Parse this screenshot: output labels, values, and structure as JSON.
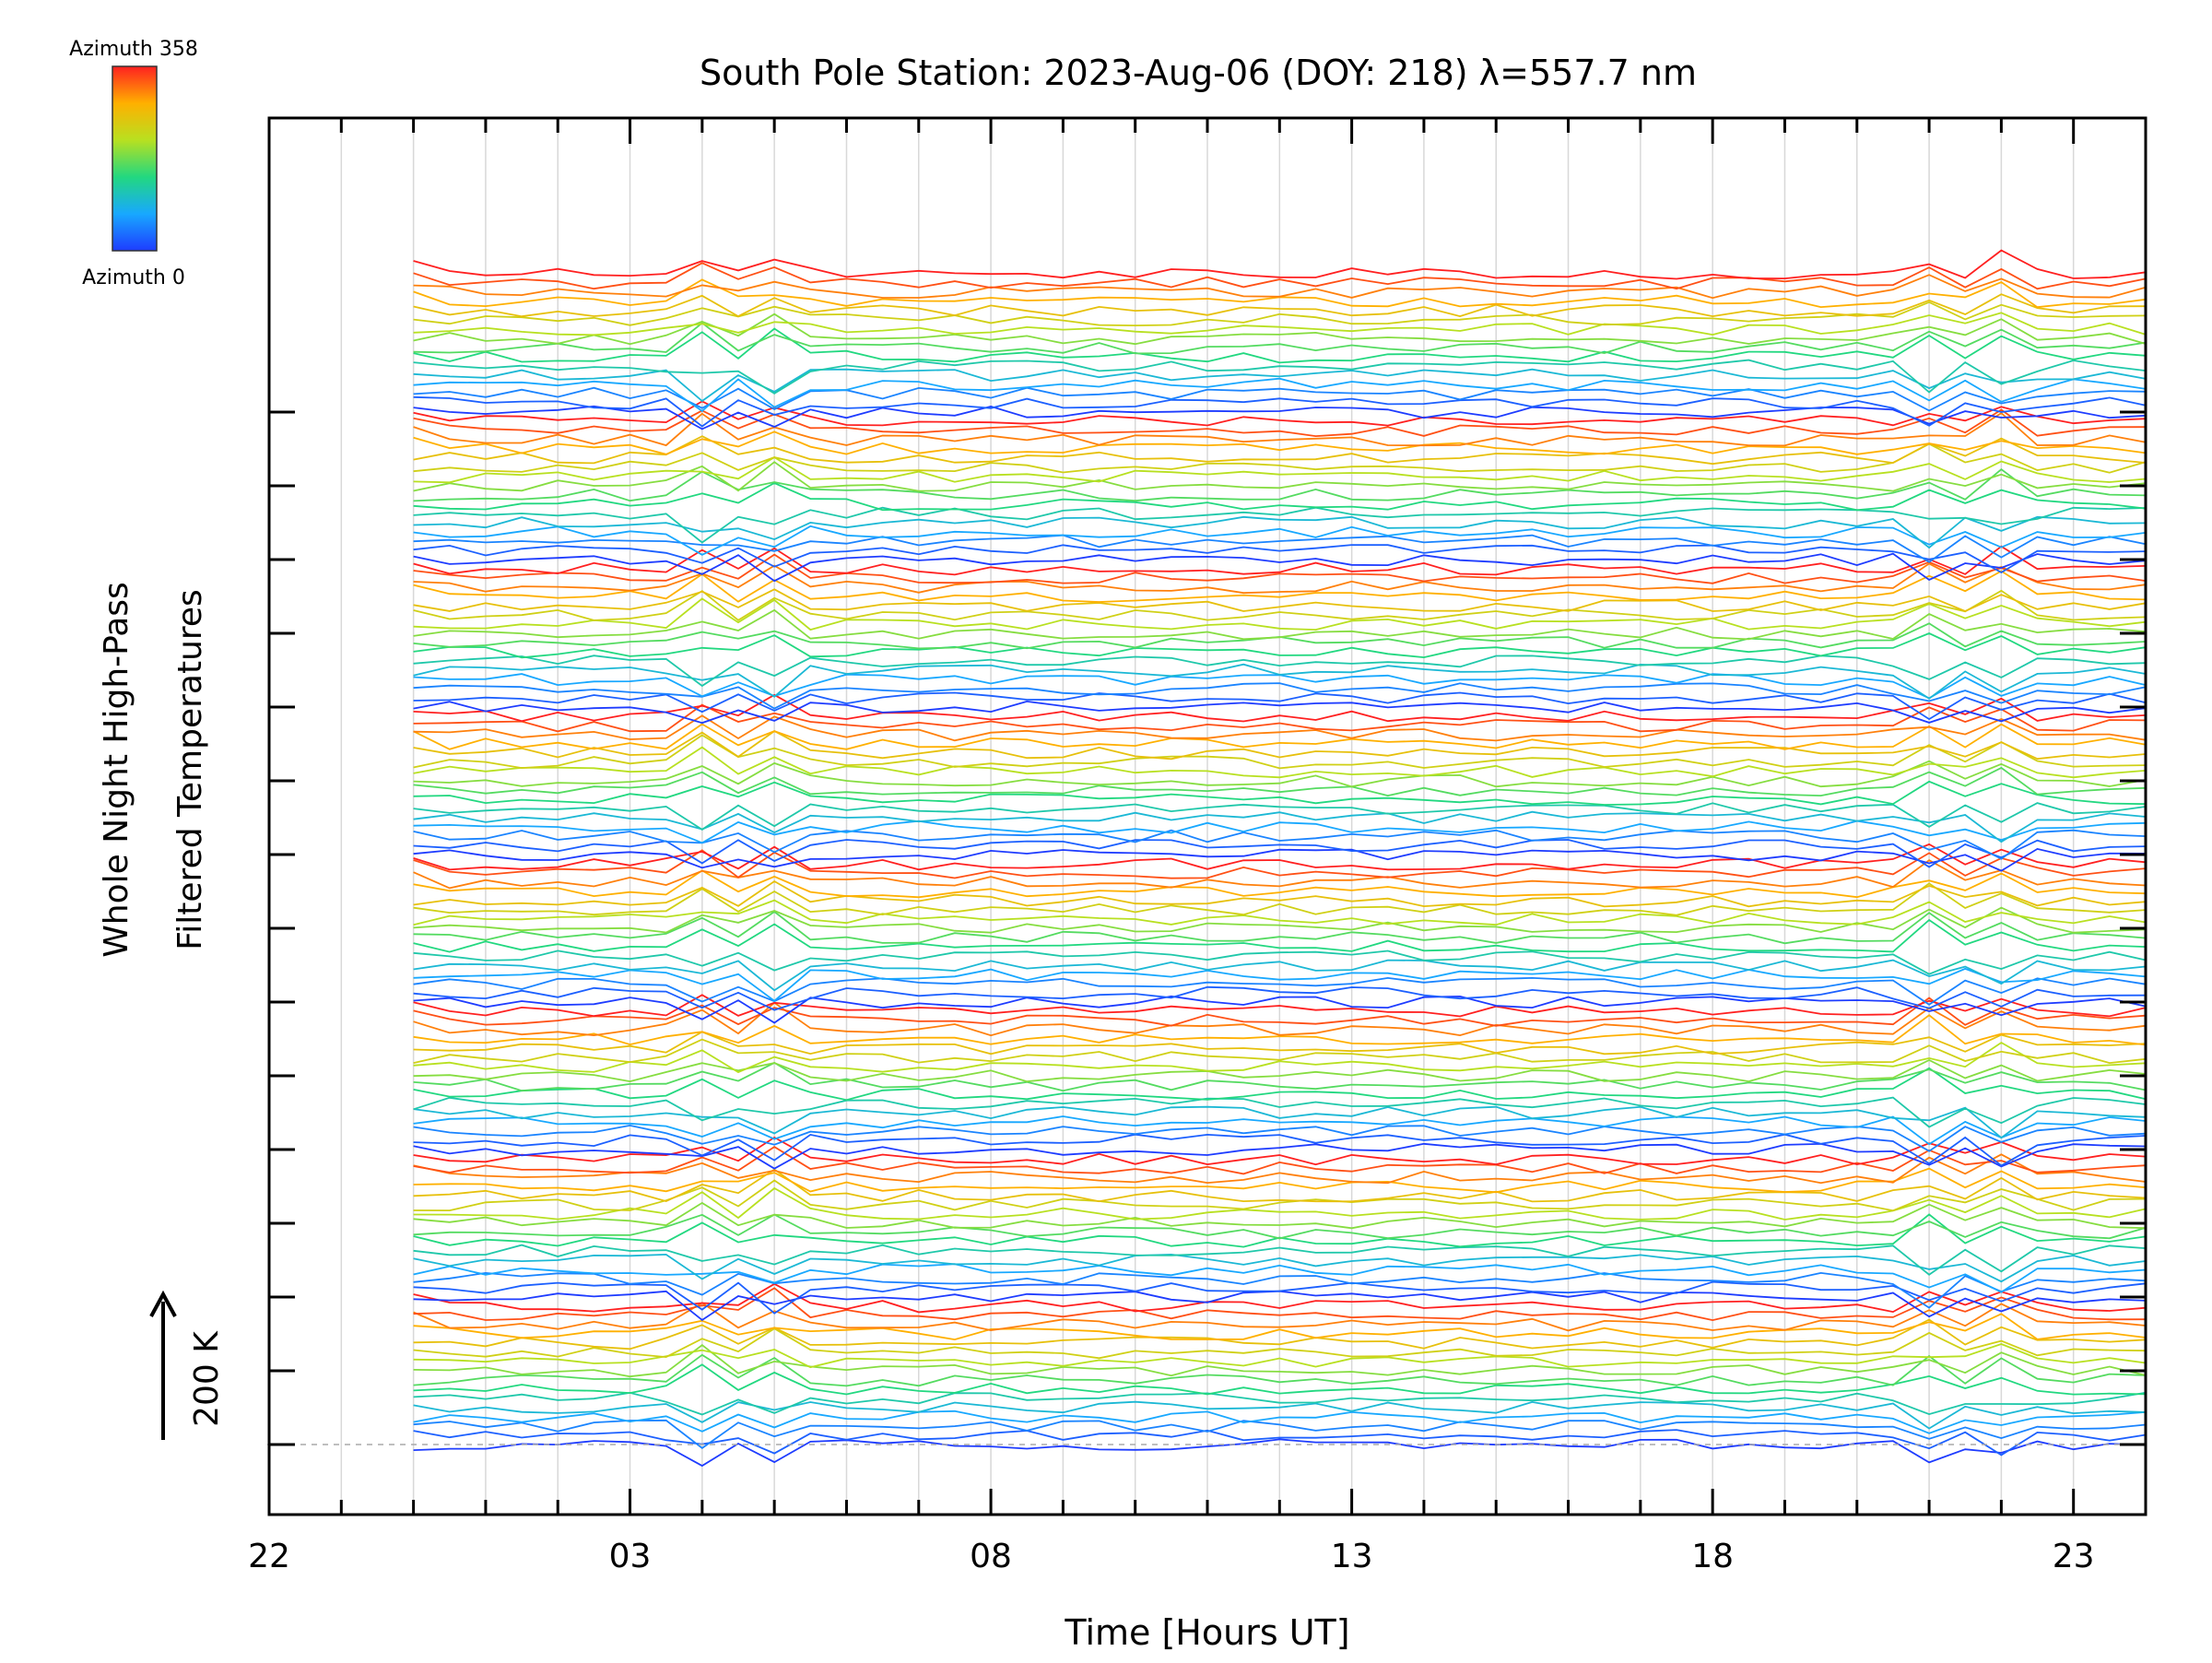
{
  "chart_data": {
    "type": "line",
    "title": "South Pole Station: 2023-Aug-06 (DOY: 218) λ=557.7 nm",
    "xlabel": "Time [Hours UT]",
    "ylabel_line1": "Whole Night High-Pass",
    "ylabel_line2": "Filtered Temperatures",
    "scale_label": "200 K",
    "x_ticks": [
      "22",
      "03",
      "08",
      "13",
      "18",
      "23"
    ],
    "x_tick_hours": [
      22,
      27,
      32,
      37,
      42,
      47
    ],
    "x_range_hours": [
      22,
      48
    ],
    "data_start_hour": 24,
    "sample_step_hours": 0.5,
    "legend": {
      "top_label": "Azimuth 358",
      "bottom_label": "Azimuth 0",
      "placement": "top-left",
      "colormap": "rainbow"
    },
    "group_count": 8,
    "traces_per_group": 16,
    "trace_offset_k": 12.5,
    "azimuth_range": [
      0,
      358
    ],
    "spike_hours": [
      28,
      29,
      45,
      46
    ],
    "notes": "High-pass filtered temperature traces for 128 azimuth/zenith looks, vertically stacked and colored by azimuth"
  }
}
